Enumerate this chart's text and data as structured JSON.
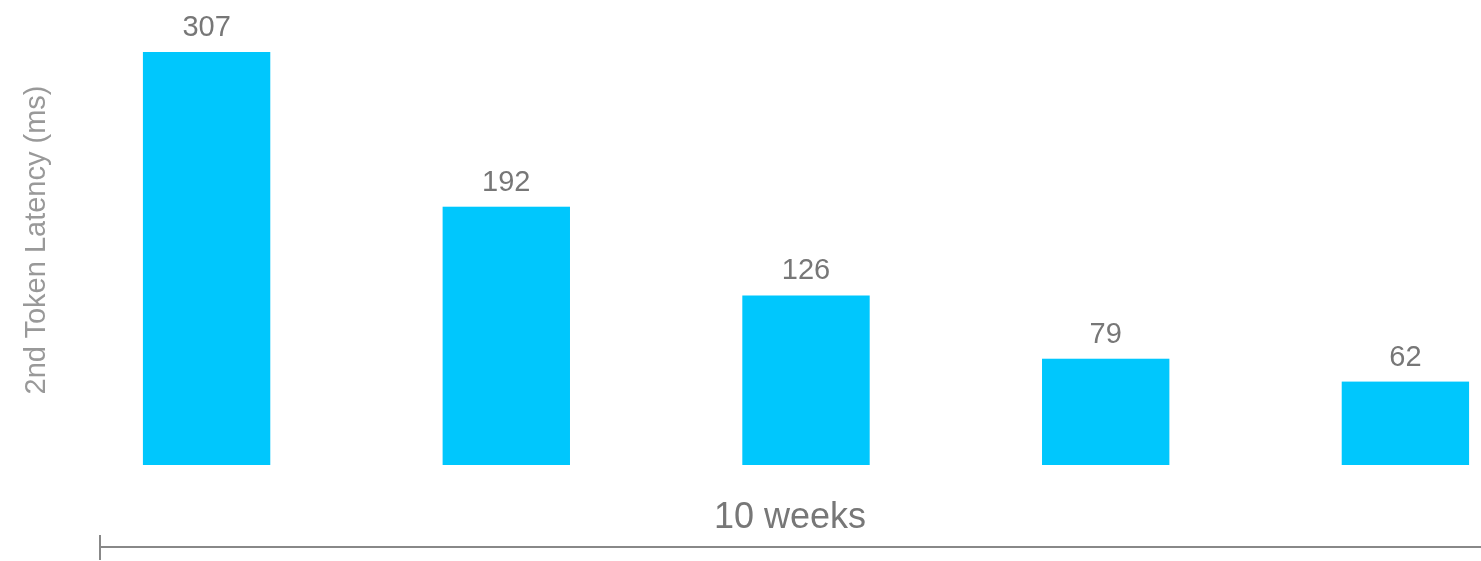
{
  "chart_data": {
    "type": "bar",
    "categories": [
      null,
      null,
      null,
      null,
      null
    ],
    "values": [
      307,
      192,
      126,
      79,
      62
    ],
    "color": "#00c7fd",
    "data_labels": true,
    "ylabel": "2nd Token Latency (ms)",
    "xlabel": "10 weeks"
  }
}
